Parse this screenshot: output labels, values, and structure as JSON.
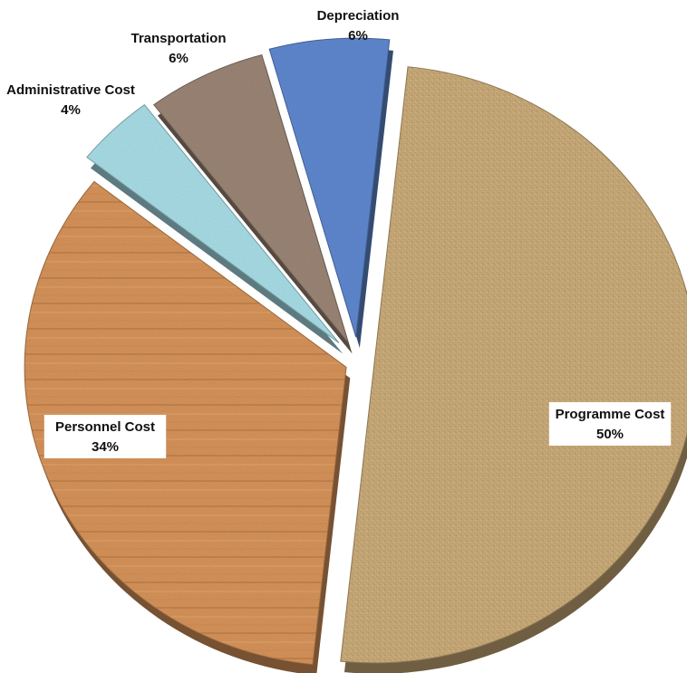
{
  "chart_data": {
    "type": "pie",
    "title": "",
    "slices": [
      {
        "label": "Programme Cost",
        "value": 50,
        "value_label": "50%",
        "color": "#c9aa78",
        "texture": "woven-canvas"
      },
      {
        "label": "Personnel Cost",
        "value": 34,
        "value_label": "34%",
        "color": "#d6935a",
        "texture": "wood-planks"
      },
      {
        "label": "Administrative Cost",
        "value": 4,
        "value_label": "4%",
        "color": "#a8dde6",
        "texture": "speckled"
      },
      {
        "label": "Transportation",
        "value": 6,
        "value_label": "6%",
        "color": "#9b8575",
        "texture": "speckled"
      },
      {
        "label": "Depreciation",
        "value": 6,
        "value_label": "6%",
        "color": "#5f88cf",
        "texture": "speckled"
      }
    ],
    "style": "3d-exploded",
    "legend": "none"
  }
}
